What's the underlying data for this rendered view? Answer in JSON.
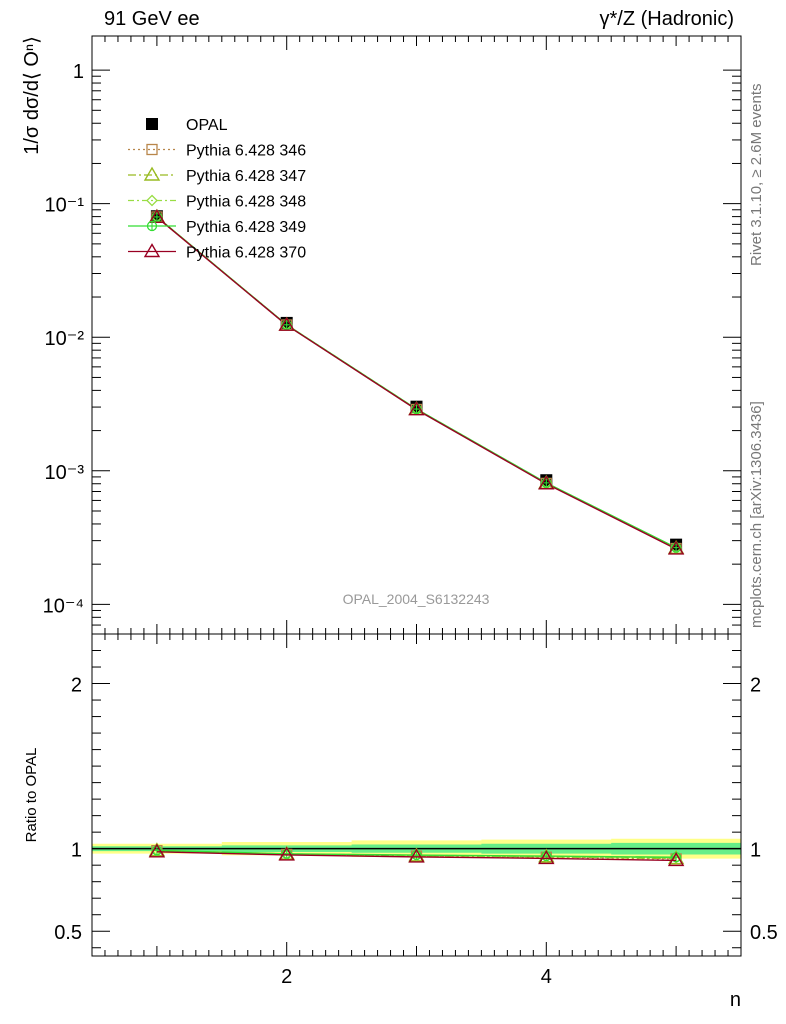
{
  "header": {
    "left_title": "91 GeV ee",
    "right_title": "γ*/Z (Hadronic)"
  },
  "side_labels": {
    "rivet": "Rivet 3.1.10, ≥ 2.6M events",
    "mcplots": "mcplots.cern.ch [arXiv:1306.3436]"
  },
  "analysis_label": "OPAL_2004_S6132243",
  "chart_data": [
    {
      "type": "line",
      "panel": "main",
      "ylabel": "1/σ dσ/d⟨ Oⁿ⟩",
      "yscale": "log",
      "ylim": [
        6e-05,
        1.8
      ],
      "xlim": [
        0.5,
        5.5
      ],
      "y_ticks": [
        {
          "value": 1,
          "label": "1"
        },
        {
          "value": 0.1,
          "label": "10⁻¹"
        },
        {
          "value": 0.01,
          "label": "10⁻²"
        },
        {
          "value": 0.001,
          "label": "10⁻³"
        },
        {
          "value": 0.0001,
          "label": "10⁻⁴"
        }
      ],
      "x": [
        1,
        2,
        3,
        4,
        5
      ],
      "legend_position": "top-left",
      "series": [
        {
          "name": "OPAL",
          "style": "data",
          "color": "#000000",
          "marker": "square-filled",
          "values": [
            0.0805,
            0.0128,
            0.00302,
            0.00085,
            0.00028
          ]
        },
        {
          "name": "Pythia 6.428 346",
          "color": "#b8864a",
          "dash": "2,3",
          "marker": "square-open",
          "values": [
            0.0795,
            0.01235,
            0.00288,
            0.000805,
            0.000262
          ]
        },
        {
          "name": "Pythia 6.428 347",
          "color": "#99bb22",
          "dash": "8,3,2,3",
          "marker": "triangle-open",
          "values": [
            0.0795,
            0.01235,
            0.00289,
            0.000808,
            0.000263
          ]
        },
        {
          "name": "Pythia 6.428 348",
          "color": "#99dd44",
          "dash": "6,3,2,3",
          "marker": "diamond-open",
          "values": [
            0.0796,
            0.01238,
            0.0029,
            0.00081,
            0.000265
          ]
        },
        {
          "name": "Pythia 6.428 349",
          "color": "#33dd33",
          "dash": "",
          "marker": "circle-cross",
          "values": [
            0.0796,
            0.01238,
            0.0029,
            0.000812,
            0.000266
          ]
        },
        {
          "name": "Pythia 6.428 370",
          "color": "#990022",
          "dash": "",
          "marker": "triangle-open",
          "values": [
            0.079,
            0.0123,
            0.00287,
            0.0008,
            0.00026
          ]
        }
      ]
    },
    {
      "type": "line",
      "panel": "ratio",
      "ylabel": "Ratio to OPAL",
      "xlabel": "n",
      "ylim": [
        0.35,
        2.3
      ],
      "xlim": [
        0.5,
        5.5
      ],
      "x_ticks": [
        {
          "value": 2,
          "label": "2"
        },
        {
          "value": 4,
          "label": "4"
        }
      ],
      "y_ticks": [
        {
          "value": 0.5,
          "label": "0.5"
        },
        {
          "value": 1,
          "label": "1"
        },
        {
          "value": 2,
          "label": "2"
        }
      ],
      "x": [
        1,
        2,
        3,
        4,
        5
      ],
      "bands": {
        "yellow_color": "#ffff88",
        "green_color": "#66ee88",
        "yellow_half_width": [
          0.03,
          0.04,
          0.05,
          0.055,
          0.06
        ],
        "green_half_width": [
          0.015,
          0.02,
          0.025,
          0.03,
          0.035
        ]
      },
      "series": [
        {
          "name": "Pythia 6.428 346",
          "values": [
            0.988,
            0.965,
            0.955,
            0.948,
            0.938
          ]
        },
        {
          "name": "Pythia 6.428 347",
          "values": [
            0.988,
            0.967,
            0.957,
            0.951,
            0.94
          ]
        },
        {
          "name": "Pythia 6.428 348",
          "values": [
            0.989,
            0.968,
            0.96,
            0.953,
            0.945
          ]
        },
        {
          "name": "Pythia 6.428 349",
          "values": [
            0.989,
            0.969,
            0.961,
            0.955,
            0.948
          ]
        },
        {
          "name": "Pythia 6.428 370",
          "values": [
            0.981,
            0.962,
            0.95,
            0.941,
            0.929
          ]
        }
      ]
    }
  ]
}
